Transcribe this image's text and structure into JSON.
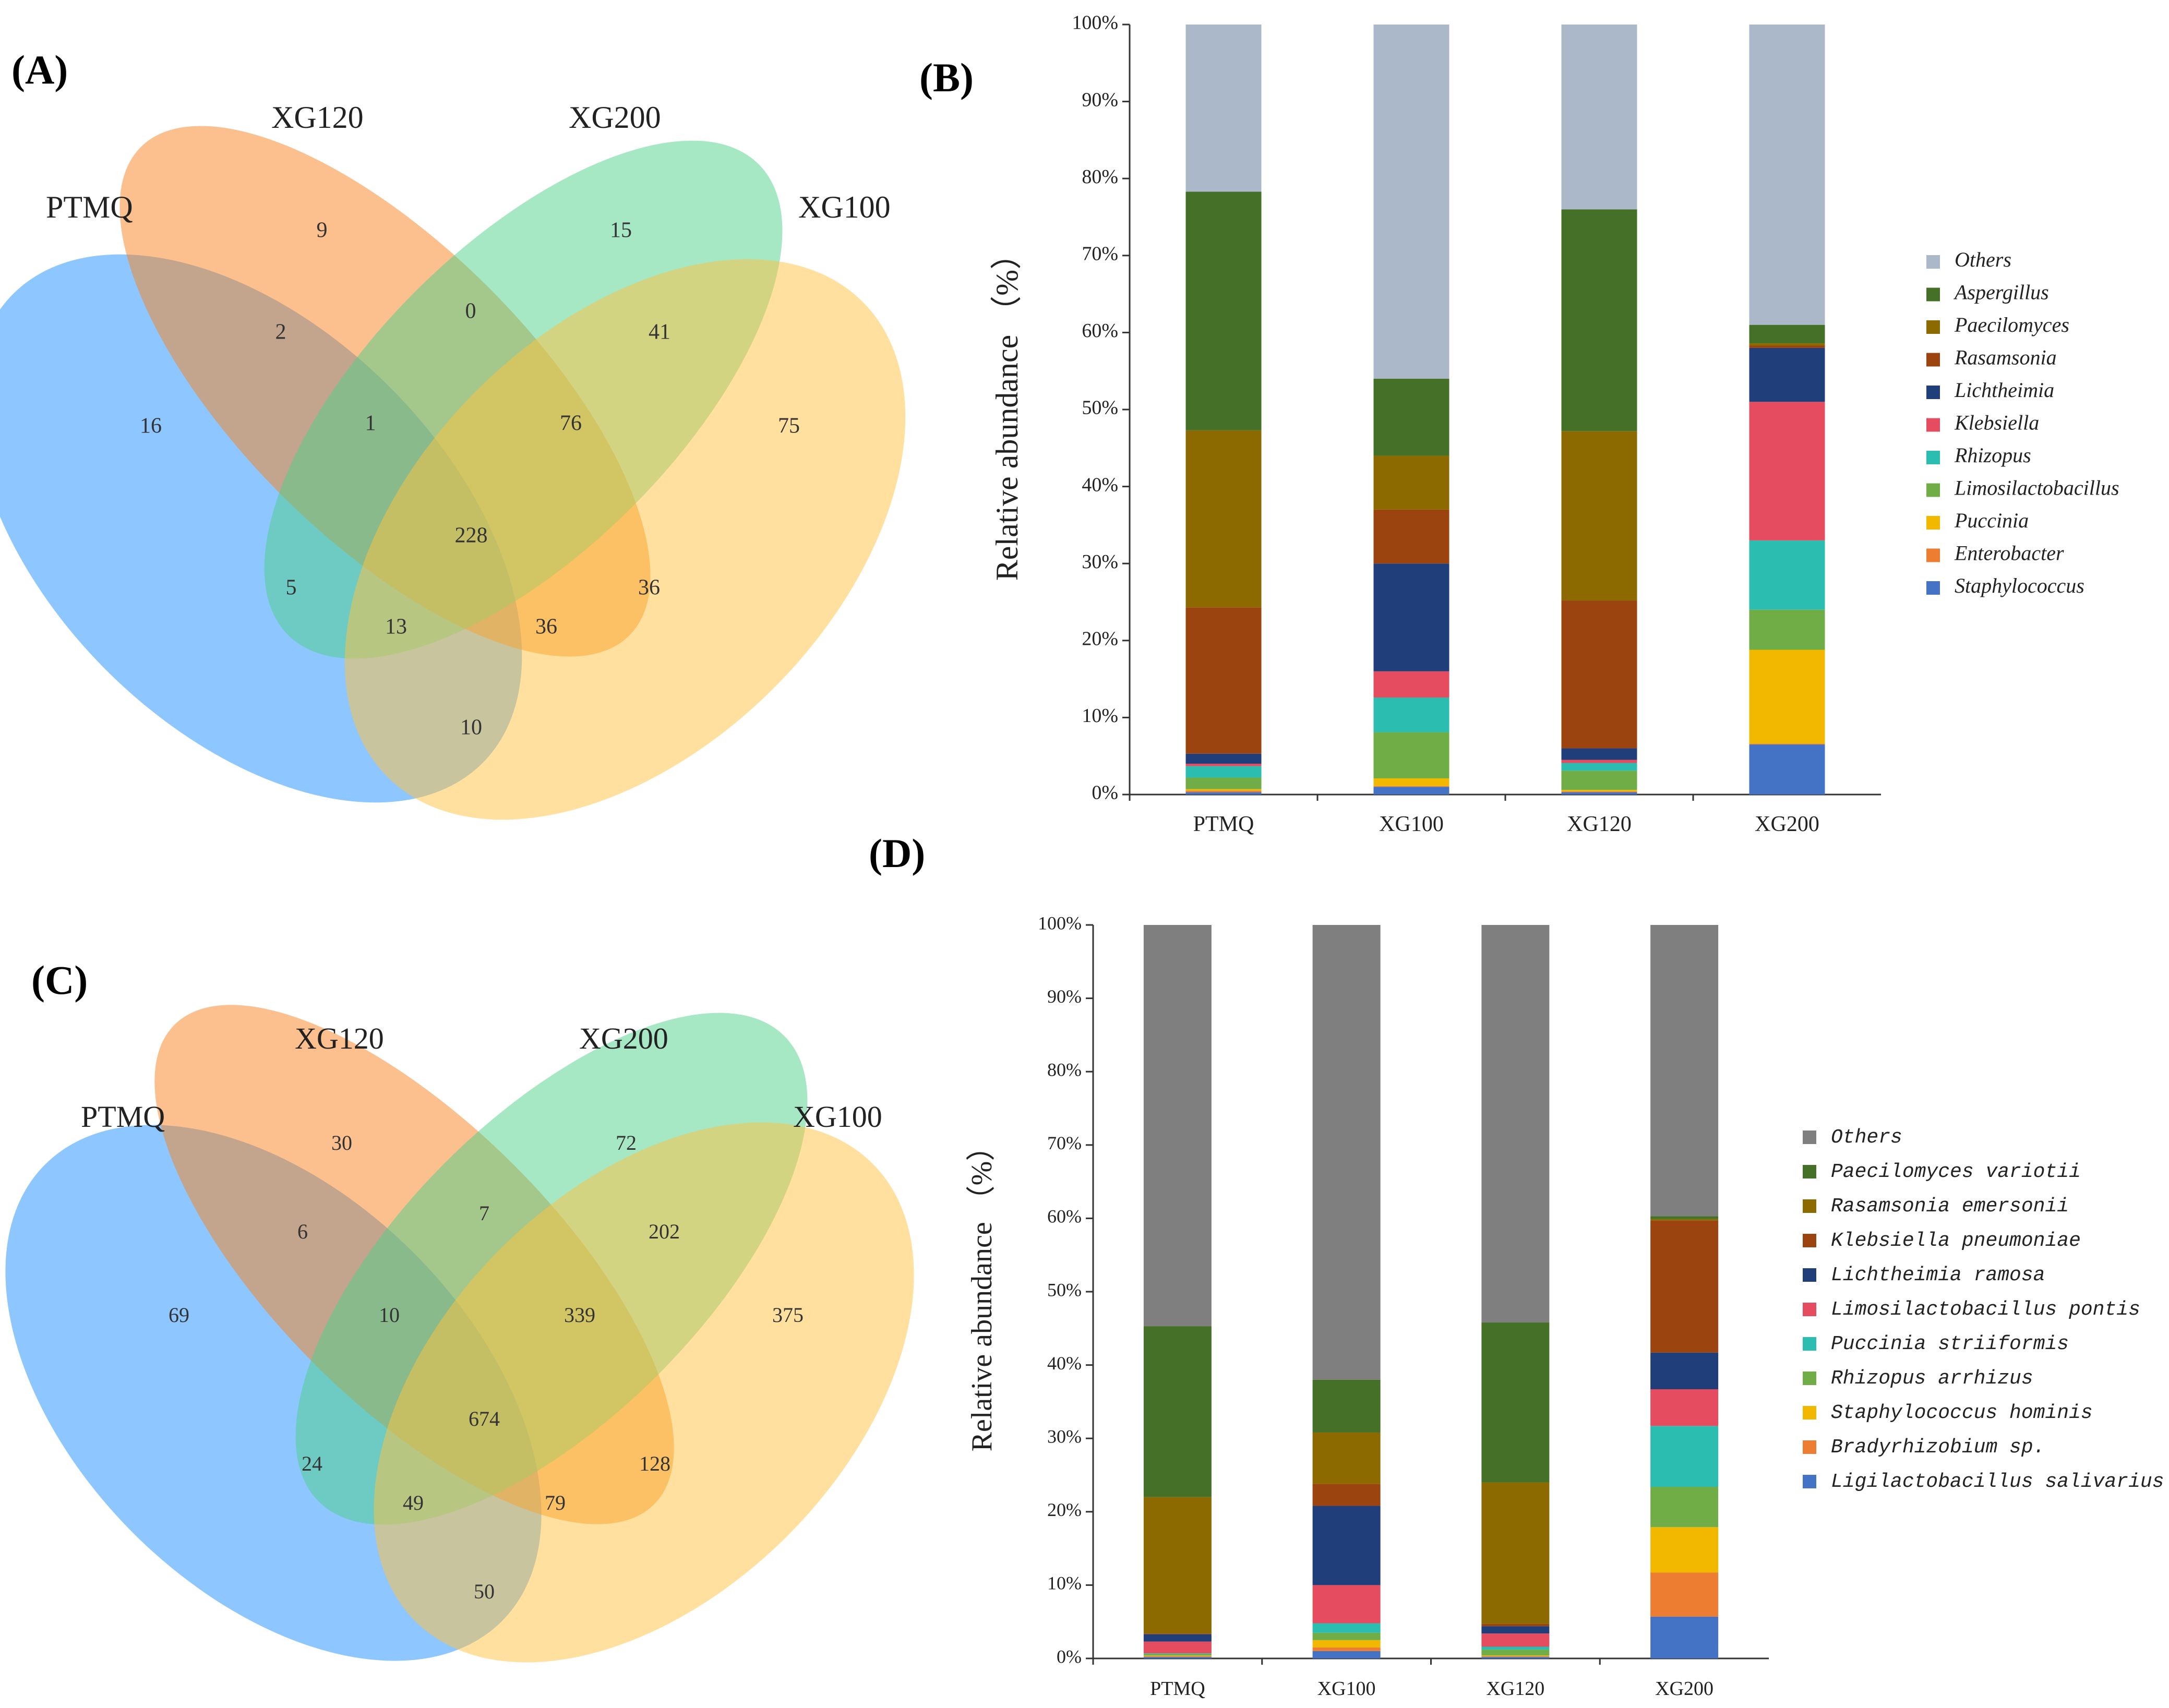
{
  "chart_data": [
    {
      "panel": "(A)",
      "type": "venn",
      "sets": [
        "PTMQ",
        "XG120",
        "XG200",
        "XG100"
      ],
      "set_colors": {
        "PTMQ": "#1e90ff",
        "XG120": "#f7821b",
        "XG200": "#4dd08a",
        "XG100": "#ffc23e"
      },
      "regions": [
        {
          "sets": [
            "PTMQ"
          ],
          "value": "16"
        },
        {
          "sets": [
            "XG120"
          ],
          "value": "9"
        },
        {
          "sets": [
            "XG200"
          ],
          "value": "15"
        },
        {
          "sets": [
            "XG100"
          ],
          "value": "75"
        },
        {
          "sets": [
            "PTMQ",
            "XG120"
          ],
          "value": "2"
        },
        {
          "sets": [
            "XG120",
            "XG200"
          ],
          "value": "0"
        },
        {
          "sets": [
            "XG200",
            "XG100"
          ],
          "value": "41"
        },
        {
          "sets": [
            "PTMQ",
            "XG120",
            "XG200"
          ],
          "value": "1"
        },
        {
          "sets": [
            "XG120",
            "XG200",
            "XG100"
          ],
          "value": "76"
        },
        {
          "sets": [
            "PTMQ",
            "XG120",
            "XG200",
            "XG100"
          ],
          "value": "228"
        },
        {
          "sets": [
            "PTMQ",
            "XG200"
          ],
          "value": "5"
        },
        {
          "sets": [
            "XG120",
            "XG100"
          ],
          "value": "36"
        },
        {
          "sets": [
            "PTMQ",
            "XG200",
            "XG100"
          ],
          "value": "13"
        },
        {
          "sets": [
            "PTMQ",
            "XG120",
            "XG100"
          ],
          "value": "36"
        },
        {
          "sets": [
            "PTMQ",
            "XG100"
          ],
          "value": "10"
        }
      ]
    },
    {
      "panel": "(B)",
      "type": "bar",
      "stacked": true,
      "ylabel": "Relative abundance （%）",
      "ylim": [
        0,
        100
      ],
      "yticks": [
        "0%",
        "10%",
        "20%",
        "30%",
        "40%",
        "50%",
        "60%",
        "70%",
        "80%",
        "90%",
        "100%"
      ],
      "categories": [
        "PTMQ",
        "XG100",
        "XG120",
        "XG200"
      ],
      "legend_position": "right",
      "series": [
        {
          "name": "Staphylococcus",
          "color": "#4472c4",
          "values": [
            0.3,
            1.0,
            0.3,
            6.5
          ]
        },
        {
          "name": "Enterobacter",
          "color": "#ed7d31",
          "values": [
            0.2,
            0.1,
            0.1,
            0.1
          ]
        },
        {
          "name": "Puccinia",
          "color": "#f2b800",
          "values": [
            0.2,
            1.0,
            0.2,
            12.2
          ]
        },
        {
          "name": "Limosilactobacillus",
          "color": "#70ad47",
          "values": [
            1.5,
            6.0,
            2.5,
            5.2
          ]
        },
        {
          "name": "Rhizopus",
          "color": "#2bbdb0",
          "values": [
            1.5,
            4.5,
            1.0,
            9.0
          ]
        },
        {
          "name": "Klebsiella",
          "color": "#e64c5f",
          "values": [
            0.3,
            3.4,
            0.4,
            18.0
          ]
        },
        {
          "name": "Lichtheimia",
          "color": "#203f7a",
          "values": [
            1.3,
            14.0,
            1.5,
            7.0
          ]
        },
        {
          "name": "Rasamsonia",
          "color": "#9c4410",
          "values": [
            19.0,
            7.0,
            19.2,
            0.3
          ]
        },
        {
          "name": "Paecilomyces",
          "color": "#8c6a00",
          "values": [
            23.0,
            7.0,
            22.0,
            0.3
          ]
        },
        {
          "name": "Aspergillus",
          "color": "#447027",
          "values": [
            31.0,
            10.0,
            28.8,
            2.4
          ]
        },
        {
          "name": "Others",
          "color": "#abb8ca",
          "values": [
            21.7,
            46.0,
            24.0,
            39.0
          ]
        }
      ]
    },
    {
      "panel": "(C)",
      "type": "venn",
      "sets": [
        "PTMQ",
        "XG120",
        "XG200",
        "XG100"
      ],
      "set_colors": {
        "PTMQ": "#1e90ff",
        "XG120": "#f7821b",
        "XG200": "#4dd08a",
        "XG100": "#ffc23e"
      },
      "regions": [
        {
          "sets": [
            "PTMQ"
          ],
          "value": "69"
        },
        {
          "sets": [
            "XG120"
          ],
          "value": "30"
        },
        {
          "sets": [
            "XG200"
          ],
          "value": "72"
        },
        {
          "sets": [
            "XG100"
          ],
          "value": "375"
        },
        {
          "sets": [
            "PTMQ",
            "XG120"
          ],
          "value": "6"
        },
        {
          "sets": [
            "XG120",
            "XG200"
          ],
          "value": "7"
        },
        {
          "sets": [
            "XG200",
            "XG100"
          ],
          "value": "202"
        },
        {
          "sets": [
            "PTMQ",
            "XG120",
            "XG200"
          ],
          "value": "10"
        },
        {
          "sets": [
            "XG120",
            "XG200",
            "XG100"
          ],
          "value": "339"
        },
        {
          "sets": [
            "PTMQ",
            "XG120",
            "XG200",
            "XG100"
          ],
          "value": "674"
        },
        {
          "sets": [
            "PTMQ",
            "XG200"
          ],
          "value": "24"
        },
        {
          "sets": [
            "XG120",
            "XG100"
          ],
          "value": "128"
        },
        {
          "sets": [
            "PTMQ",
            "XG200",
            "XG100"
          ],
          "value": "49"
        },
        {
          "sets": [
            "PTMQ",
            "XG120",
            "XG100"
          ],
          "value": "79"
        },
        {
          "sets": [
            "PTMQ",
            "XG100"
          ],
          "value": "50"
        }
      ]
    },
    {
      "panel": "(D)",
      "type": "bar",
      "stacked": true,
      "ylabel": "Relative abundance （%）",
      "ylim": [
        0,
        100
      ],
      "yticks": [
        "0%",
        "10%",
        "20%",
        "30%",
        "40%",
        "50%",
        "60%",
        "70%",
        "80%",
        "90%",
        "100%"
      ],
      "categories": [
        "PTMQ",
        "XG100",
        "XG120",
        "XG200"
      ],
      "legend_position": "right",
      "series": [
        {
          "name": "Ligilactobacillus salivarius",
          "color": "#4472c4",
          "values": [
            0.2,
            1.0,
            0.2,
            5.7
          ]
        },
        {
          "name": "Bradyrhizobium sp.",
          "color": "#ed7d31",
          "values": [
            0.1,
            0.5,
            0.1,
            6.0
          ]
        },
        {
          "name": "Staphylococcus hominis",
          "color": "#f2b800",
          "values": [
            0.1,
            1.0,
            0.1,
            6.2
          ]
        },
        {
          "name": "Rhizopus arrhizus",
          "color": "#70ad47",
          "values": [
            0.2,
            1.0,
            0.8,
            5.5
          ]
        },
        {
          "name": "Puccinia striiformis",
          "color": "#2bbdb0",
          "values": [
            0.1,
            1.3,
            0.4,
            8.3
          ]
        },
        {
          "name": "Limosilactobacillus pontis",
          "color": "#e64c5f",
          "values": [
            1.6,
            5.2,
            1.8,
            5.0
          ]
        },
        {
          "name": "Lichtheimia ramosa",
          "color": "#203f7a",
          "values": [
            1.0,
            10.8,
            1.0,
            5.0
          ]
        },
        {
          "name": "Klebsiella pneumoniae",
          "color": "#9c4410",
          "values": [
            0.1,
            3.0,
            0.3,
            18.0
          ]
        },
        {
          "name": "Rasamsonia emersonii",
          "color": "#8c6a00",
          "values": [
            18.6,
            7.0,
            19.3,
            0.2
          ]
        },
        {
          "name": "Paecilomyces variotii",
          "color": "#447027",
          "values": [
            23.3,
            7.2,
            21.8,
            0.4
          ]
        },
        {
          "name": "Others",
          "color": "#7f7f7f",
          "values": [
            54.7,
            62.0,
            54.2,
            39.7
          ]
        }
      ]
    }
  ]
}
